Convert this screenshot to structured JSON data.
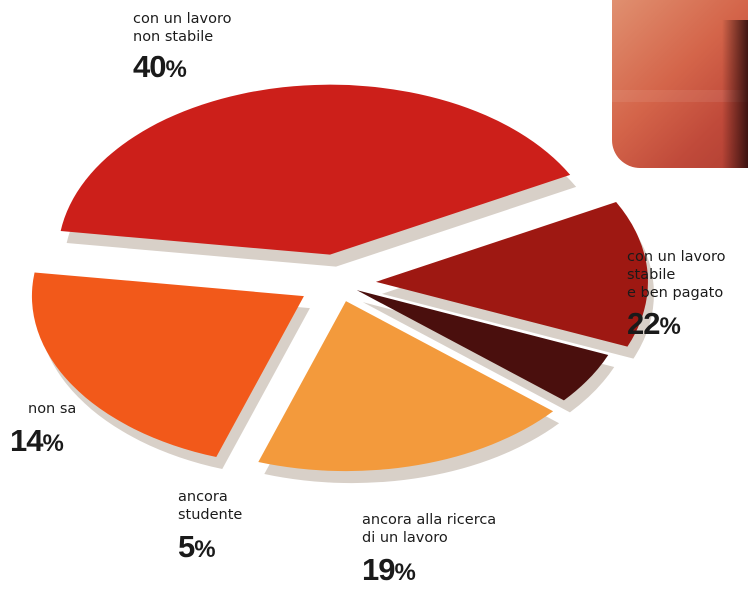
{
  "chart_data": {
    "type": "pie",
    "slices": [
      {
        "label": "con un lavoro\nnon stabile",
        "value": 40,
        "value_text": "40",
        "color": "#cc1f1a"
      },
      {
        "label": "con un lavoro\nstabile\ne ben pagato",
        "value": 22,
        "value_text": "22",
        "color": "#f2591a"
      },
      {
        "label": "ancora alla ricerca\ndi un lavoro",
        "value": 19,
        "value_text": "19",
        "color": "#f39a3c"
      },
      {
        "label": "ancora\nstudente",
        "value": 5,
        "value_text": "5",
        "color": "#4a0f0d"
      },
      {
        "label": "non sa",
        "value": 14,
        "value_text": "14",
        "color": "#9e1812"
      }
    ],
    "unit": "%",
    "shadow_color": "#d8d0c8"
  },
  "photo": {
    "colors": [
      "#e09070",
      "#c04a3a"
    ]
  }
}
